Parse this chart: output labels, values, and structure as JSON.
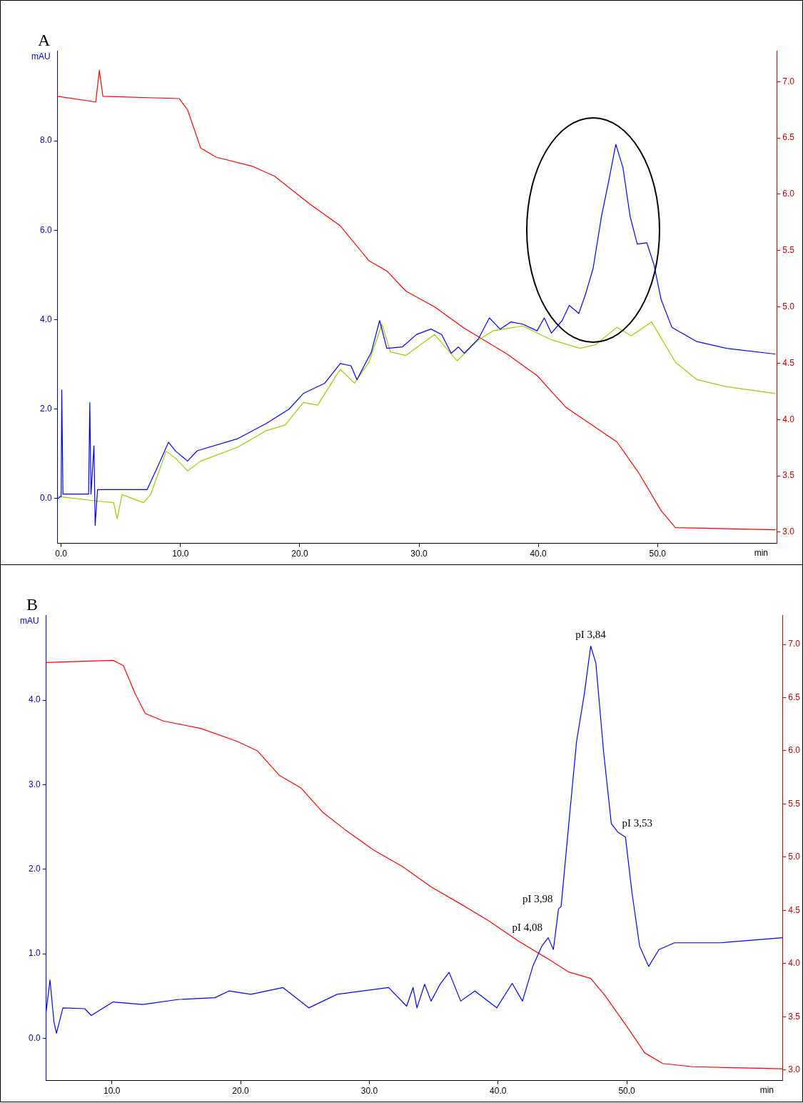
{
  "chart_data": [
    {
      "type": "line",
      "title": "A",
      "xlabel": "min",
      "ylabel": "mAU",
      "xlim": [
        -0.3,
        60
      ],
      "xticks": [
        {
          "value": 0,
          "label": "0.0"
        },
        {
          "value": 10,
          "label": "10.0"
        },
        {
          "value": 20,
          "label": "20.0"
        },
        {
          "value": 30,
          "label": "30.0"
        },
        {
          "value": 40,
          "label": "40.0"
        },
        {
          "value": 50,
          "label": "50.0"
        }
      ],
      "ylim": [
        -1,
        10
      ],
      "yticks": [
        {
          "value": 0,
          "label": "0.0"
        },
        {
          "value": 2,
          "label": "2.0"
        },
        {
          "value": 4,
          "label": "4.0"
        },
        {
          "value": 6,
          "label": "6.0"
        },
        {
          "value": 8,
          "label": "8.0"
        }
      ],
      "y2lim": [
        2.9,
        7.27
      ],
      "y2ticks": [
        {
          "value": 3,
          "label": "3.0"
        },
        {
          "value": 3.5,
          "label": "3.5"
        },
        {
          "value": 4,
          "label": "4.0"
        },
        {
          "value": 4.5,
          "label": "4.5"
        },
        {
          "value": 5,
          "label": "5.0"
        },
        {
          "value": 5.5,
          "label": "5.5"
        },
        {
          "value": 6,
          "label": "6.0"
        },
        {
          "value": 6.5,
          "label": "6.5"
        },
        {
          "value": 7,
          "label": "7.0"
        }
      ],
      "series": [
        {
          "color": "#0000ff",
          "x": [
            -0.3,
            0,
            0.05,
            0.15,
            0.3,
            2.3,
            2.4,
            2.5,
            2.75,
            2.85,
            3.05,
            3.2,
            7.2,
            8.1,
            9.0,
            9.6,
            10.6,
            11.4,
            14.8,
            17.2,
            19.1,
            20.3,
            22.1,
            23.4,
            24.3,
            24.8,
            25.5,
            26,
            26.7,
            27.3,
            28.6,
            29.8,
            31.0,
            31.9,
            32.7,
            33.3,
            33.8,
            35.0,
            35.9,
            36.8,
            37.7,
            38.7,
            39.9,
            40.5,
            41.1,
            42.0,
            42.6,
            43.4,
            44.0,
            44.6,
            45.3,
            45.9,
            46.5,
            47.1,
            47.7,
            48.3,
            49.1,
            49.7,
            50.3,
            51.2,
            53.3,
            55.8,
            59.9
          ],
          "values": [
            0.0,
            0.05,
            2.43,
            0.1,
            0.1,
            0.1,
            2.15,
            0.1,
            1.18,
            -0.6,
            0.2,
            0.2,
            0.2,
            0.72,
            1.26,
            1.06,
            0.84,
            1.07,
            1.34,
            1.68,
            2.0,
            2.35,
            2.58,
            3.02,
            2.97,
            2.66,
            3.02,
            3.27,
            3.98,
            3.36,
            3.39,
            3.67,
            3.79,
            3.67,
            3.25,
            3.39,
            3.25,
            3.58,
            4.04,
            3.79,
            3.95,
            3.9,
            3.75,
            4.04,
            3.7,
            3.98,
            4.32,
            4.14,
            4.6,
            5.15,
            6.31,
            7.09,
            7.92,
            7.4,
            6.31,
            5.69,
            5.72,
            5.23,
            4.45,
            3.83,
            3.51,
            3.36,
            3.23
          ]
        },
        {
          "color": "#99cc00",
          "x": [
            -0.3,
            3.2,
            4.4,
            4.7,
            5.1,
            6.9,
            7.5,
            8.8,
            9.6,
            10.6,
            11.7,
            14.8,
            17.2,
            18.8,
            20.3,
            21.5,
            23.4,
            24.6,
            25.8,
            26.9,
            27.6,
            28.9,
            31.3,
            33.2,
            35.0,
            36.2,
            38.7,
            41.1,
            43.5,
            44.8,
            46.6,
            47.8,
            49.5,
            51.5,
            53.3,
            55.8,
            59.9
          ],
          "values": [
            0.05,
            -0.06,
            -0.09,
            -0.45,
            0.09,
            -0.09,
            0.09,
            1.06,
            0.9,
            0.62,
            0.84,
            1.15,
            1.52,
            1.65,
            2.15,
            2.09,
            2.89,
            2.58,
            3.05,
            3.9,
            3.28,
            3.2,
            3.67,
            3.08,
            3.55,
            3.75,
            3.86,
            3.55,
            3.36,
            3.44,
            3.83,
            3.64,
            3.95,
            3.05,
            2.66,
            2.5,
            2.35
          ]
        },
        {
          "color": "#ff0000",
          "axis": "y2",
          "x": [
            -0.3,
            2.9,
            3.2,
            3.5,
            9.9,
            10.6,
            11.7,
            13.0,
            16.0,
            17.9,
            20.9,
            23.4,
            25.8,
            27.3,
            28.9,
            31.3,
            33.8,
            37.4,
            39.9,
            42.3,
            44.8,
            46.6,
            48.4,
            50.3,
            51.5,
            55.8,
            59.9
          ],
          "values": [
            6.87,
            6.82,
            7.1,
            6.87,
            6.85,
            6.75,
            6.41,
            6.33,
            6.25,
            6.16,
            5.91,
            5.72,
            5.41,
            5.32,
            5.14,
            5.0,
            4.81,
            4.58,
            4.39,
            4.11,
            3.93,
            3.8,
            3.53,
            3.19,
            3.04,
            3.03,
            3.02
          ]
        }
      ]
    },
    {
      "type": "line",
      "title": "B",
      "xlabel": "min",
      "ylabel": "mAU",
      "xlim": [
        4.9,
        62.1
      ],
      "xticks": [
        {
          "value": 10,
          "label": "10.0"
        },
        {
          "value": 20,
          "label": "20.0"
        },
        {
          "value": 30,
          "label": "30.0"
        },
        {
          "value": 40,
          "label": "40.0"
        },
        {
          "value": 50,
          "label": "50.0"
        }
      ],
      "ylim": [
        -0.5,
        5
      ],
      "yticks": [
        {
          "value": 0,
          "label": "0.0"
        },
        {
          "value": 1,
          "label": "1.0"
        },
        {
          "value": 2,
          "label": "2.0"
        },
        {
          "value": 3,
          "label": "3.0"
        },
        {
          "value": 4,
          "label": "4.0"
        }
      ],
      "y2lim": [
        2.9,
        7.27
      ],
      "y2ticks": [
        {
          "value": 3,
          "label": "3.0"
        },
        {
          "value": 3.5,
          "label": "3.5"
        },
        {
          "value": 4,
          "label": "4.0"
        },
        {
          "value": 4.5,
          "label": "4.5"
        },
        {
          "value": 5,
          "label": "5.0"
        },
        {
          "value": 5.5,
          "label": "5.5"
        },
        {
          "value": 6,
          "label": "6.0"
        },
        {
          "value": 6.5,
          "label": "6.5"
        },
        {
          "value": 7,
          "label": "7.0"
        }
      ],
      "annotations": [
        {
          "text": "pI 3,84",
          "x": 47.2,
          "y": 4.64
        },
        {
          "text": "pI 3,53",
          "x": 49.3,
          "y": 2.44
        },
        {
          "text": "pI 3,98",
          "x": 44.7,
          "y": 1.53
        },
        {
          "text": "pI 4,08",
          "x": 43.9,
          "y": 1.19
        }
      ],
      "series": [
        {
          "color": "#0000ff",
          "x": [
            4.9,
            5.2,
            5.5,
            5.7,
            6.2,
            7.9,
            8.4,
            10.1,
            12.4,
            15.2,
            18.0,
            19.1,
            20.8,
            23.3,
            25.3,
            27.5,
            31.5,
            32.9,
            33.4,
            33.7,
            34.3,
            34.8,
            35.5,
            36.2,
            37.1,
            38.2,
            39.9,
            41.1,
            41.9,
            42.7,
            43.4,
            43.9,
            44.3,
            44.7,
            44.9,
            45.5,
            46.1,
            46.7,
            47.2,
            47.6,
            48.2,
            48.8,
            49.3,
            49.9,
            50.4,
            51.0,
            51.7,
            52.5,
            53.7,
            57.3,
            62.1
          ],
          "values": [
            0.32,
            0.69,
            0.2,
            0.06,
            0.36,
            0.35,
            0.27,
            0.43,
            0.4,
            0.46,
            0.48,
            0.56,
            0.52,
            0.6,
            0.36,
            0.52,
            0.6,
            0.38,
            0.6,
            0.36,
            0.64,
            0.44,
            0.64,
            0.78,
            0.44,
            0.56,
            0.36,
            0.65,
            0.44,
            0.85,
            1.09,
            1.19,
            1.05,
            1.53,
            1.56,
            2.54,
            3.51,
            4.07,
            4.64,
            4.44,
            3.39,
            2.54,
            2.44,
            2.38,
            1.73,
            1.09,
            0.85,
            1.05,
            1.13,
            1.13,
            1.19
          ]
        },
        {
          "color": "#ff0000",
          "axis": "y2",
          "x": [
            4.9,
            10.1,
            10.9,
            11.8,
            12.6,
            14.0,
            16.9,
            19.7,
            21.3,
            23.0,
            24.7,
            26.4,
            28.1,
            30.3,
            32.6,
            34.8,
            37.1,
            39.3,
            41.6,
            43.8,
            45.5,
            47.2,
            48.3,
            50.0,
            51.4,
            52.8,
            55.1,
            62.1
          ],
          "values": [
            6.83,
            6.85,
            6.8,
            6.54,
            6.35,
            6.28,
            6.21,
            6.09,
            6.0,
            5.77,
            5.65,
            5.42,
            5.26,
            5.07,
            4.91,
            4.72,
            4.56,
            4.4,
            4.21,
            4.05,
            3.92,
            3.86,
            3.7,
            3.41,
            3.16,
            3.06,
            3.03,
            3.01
          ]
        }
      ]
    }
  ]
}
